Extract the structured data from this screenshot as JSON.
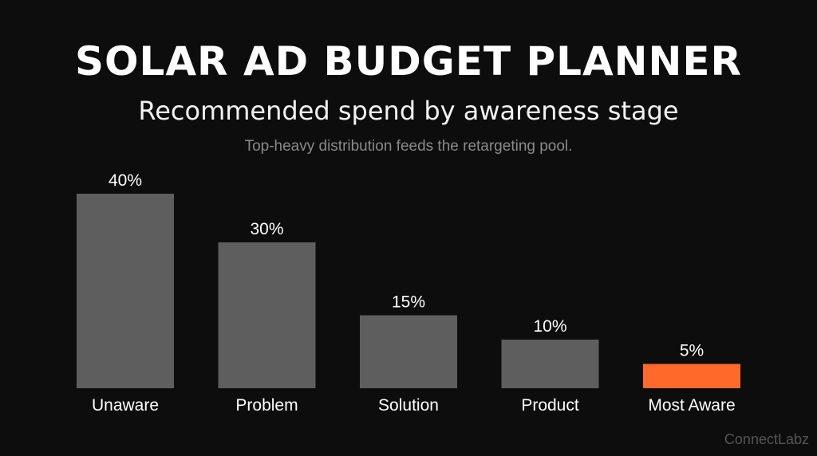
{
  "header": {
    "title": "SOLAR AD BUDGET PLANNER",
    "subtitle": "Recommended spend by awareness stage",
    "caption": "Top-heavy distribution feeds the retargeting pool."
  },
  "watermark": "ConnectLabz",
  "chart_data": {
    "type": "bar",
    "categories": [
      "Unaware",
      "Problem",
      "Solution",
      "Product",
      "Most Aware"
    ],
    "values": [
      40,
      30,
      15,
      10,
      5
    ],
    "data_labels": [
      "40%",
      "30%",
      "15%",
      "10%",
      "5%"
    ],
    "title": "SOLAR AD BUDGET PLANNER",
    "subtitle": "Recommended spend by awareness stage",
    "xlabel": "",
    "ylabel": "",
    "ylim": [
      0,
      40
    ],
    "grid": false,
    "legend": "none",
    "colors": {
      "bar": "#5e5e5e",
      "highlight": "#ff6a2b",
      "highlight_category": "Most Aware",
      "text": "#ffffff",
      "background": "#0d0d0d"
    }
  }
}
